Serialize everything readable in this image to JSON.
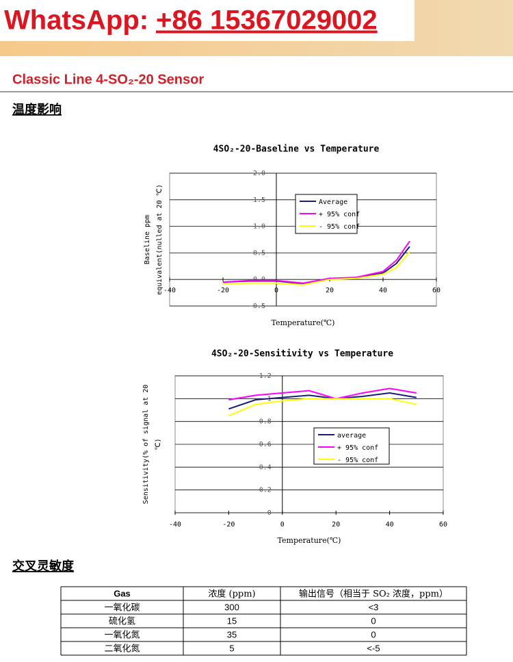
{
  "banner": {
    "label": "WhatsApp:",
    "phone": "+86 15367029002"
  },
  "header": {
    "title": "Classic Line 4-SO₂-20 Sensor"
  },
  "sections": [
    "温度影响",
    "交叉灵敏度"
  ],
  "chart_data": [
    {
      "type": "line",
      "title": "4SO₂-20-Baseline vs Temperature",
      "y_label": [
        "Baseline ppm",
        "equivalent(nulled at 20 ℃)"
      ],
      "x_label": "Temperature(℃)",
      "x": [
        -20,
        -10,
        0,
        10,
        20,
        30,
        40,
        45,
        50
      ],
      "series": [
        {
          "name": "Average",
          "color": "#1a1a7a",
          "values": [
            -0.05,
            -0.03,
            -0.03,
            -0.08,
            0.01,
            0.03,
            0.12,
            0.3,
            0.62
          ]
        },
        {
          "name": "+ 95% conf",
          "color": "#ff00ff",
          "values": [
            -0.05,
            -0.02,
            -0.02,
            -0.07,
            0.02,
            0.04,
            0.15,
            0.36,
            0.72
          ]
        },
        {
          "name": "- 95% conf",
          "color": "#ffff00",
          "values": [
            -0.08,
            -0.07,
            -0.07,
            -0.1,
            0.0,
            0.02,
            0.1,
            0.22,
            0.52
          ]
        }
      ],
      "xlim": [
        -40,
        60
      ],
      "xticks": [
        -40,
        -20,
        0,
        20,
        40,
        60
      ],
      "ylim": [
        -0.5,
        2.0
      ],
      "yticks": [
        {
          "value": 2,
          "label": "2.0"
        },
        1.5,
        {
          "value": 1,
          "label": "1.0"
        },
        0.5,
        {
          "value": 0,
          "label": "0.0"
        },
        -0.5
      ],
      "grid": true
    },
    {
      "type": "line",
      "title": "4SO₂-20-Sensitivity vs Temperature",
      "y_label": [
        "Sensitivity(% of signal at 20",
        "℃)"
      ],
      "x_label": "Temperature(℃)",
      "x": [
        -20,
        -10,
        0,
        10,
        20,
        30,
        40,
        50
      ],
      "series": [
        {
          "name": "average",
          "color": "#1a1a7a",
          "values": [
            0.91,
            0.99,
            1.01,
            1.03,
            1.0,
            1.02,
            1.05,
            1.01
          ]
        },
        {
          "name": "+ 95% conf",
          "color": "#ff00ff",
          "values": [
            0.99,
            1.03,
            1.05,
            1.07,
            1.0,
            1.05,
            1.09,
            1.05
          ]
        },
        {
          "name": "- 95% conf",
          "color": "#ffff00",
          "values": [
            0.85,
            0.95,
            0.98,
            1.0,
            1.0,
            1.0,
            1.0,
            0.95
          ]
        }
      ],
      "xlim": [
        -40,
        60
      ],
      "xticks": [
        -40,
        -20,
        0,
        20,
        40,
        60
      ],
      "ylim": [
        0,
        1.2
      ],
      "yticks": [
        1.2,
        1,
        0.8,
        0.6,
        0.4,
        0.2,
        0
      ],
      "grid": true
    }
  ],
  "table": {
    "header": [
      "Gas",
      "浓度 (ppm)",
      "输出信号（相当于 SO₂ 浓度，ppm）"
    ],
    "rows": [
      [
        "一氧化碳",
        "300",
        "<3"
      ],
      [
        "硫化氢",
        "15",
        "0"
      ],
      [
        "一氧化氮",
        "35",
        "0"
      ],
      [
        "二氧化氮",
        "5",
        "<-5"
      ]
    ]
  }
}
